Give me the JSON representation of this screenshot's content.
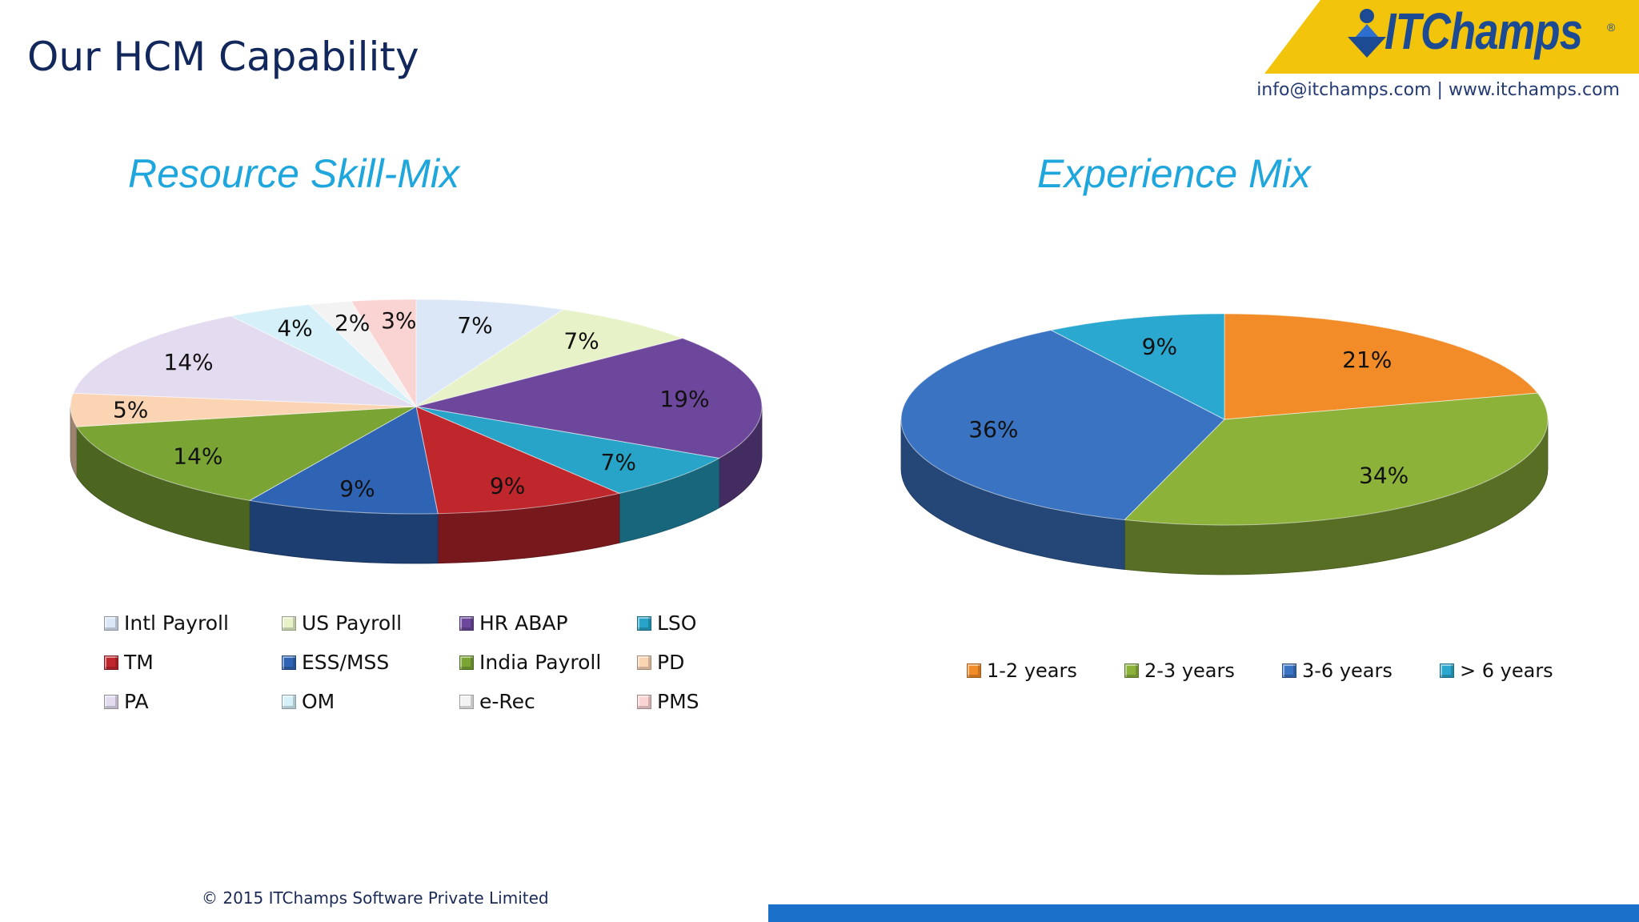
{
  "page": {
    "title": "Our HCM Capability",
    "logo_text": "ITChamps",
    "logo_registered": "®",
    "contact": "info@itchamps.com | www.itchamps.com",
    "footer": "© 2015 ITChamps Software Private Limited",
    "colors": {
      "title": "#12275b",
      "chart_title": "#1fa6dd",
      "footer_bar": "#1a6fc9",
      "logo_yellow": "#f2c40c",
      "logo_blue": "#1c4a93"
    }
  },
  "chart_data": [
    {
      "type": "pie",
      "title": "Resource Skill-Mix",
      "legend_position": "bottom",
      "slices": [
        {
          "name": "Intl Payroll",
          "value": 7,
          "label": "7%",
          "color": "#dbe6f7"
        },
        {
          "name": "US Payroll",
          "value": 7,
          "label": "7%",
          "color": "#e7f2c8"
        },
        {
          "name": "HR ABAP",
          "value": 19,
          "label": "19%",
          "color": "#6c479b"
        },
        {
          "name": "LSO",
          "value": 7,
          "label": "7%",
          "color": "#27a4c7"
        },
        {
          "name": "TM",
          "value": 9,
          "label": "9%",
          "color": "#c0272d"
        },
        {
          "name": "ESS/MSS",
          "value": 9,
          "label": "9%",
          "color": "#2f64b5"
        },
        {
          "name": "India Payroll",
          "value": 14,
          "label": "14%",
          "color": "#7aa535"
        },
        {
          "name": "PD",
          "value": 5,
          "label": "5%",
          "color": "#fbd4b4"
        },
        {
          "name": "PA",
          "value": 14,
          "label": "14%",
          "color": "#e3dbef"
        },
        {
          "name": "OM",
          "value": 4,
          "label": "4%",
          "color": "#d5f0f8"
        },
        {
          "name": "e-Rec",
          "value": 2,
          "label": "2%",
          "color": "#f3f3f3"
        },
        {
          "name": "PMS",
          "value": 3,
          "label": "3%",
          "color": "#fad3d3"
        }
      ]
    },
    {
      "type": "pie",
      "title": "Experience Mix",
      "legend_position": "bottom",
      "slices": [
        {
          "name": "1-2 years",
          "value": 21,
          "label": "21%",
          "color": "#f28c28"
        },
        {
          "name": "2-3 years",
          "value": 34,
          "label": "34%",
          "color": "#8cb23a"
        },
        {
          "name": "3-6 years",
          "value": 36,
          "label": "36%",
          "color": "#3a73c2"
        },
        {
          "name": "> 6 years",
          "value": 9,
          "label": "9%",
          "color": "#2aa8cf"
        }
      ]
    }
  ]
}
